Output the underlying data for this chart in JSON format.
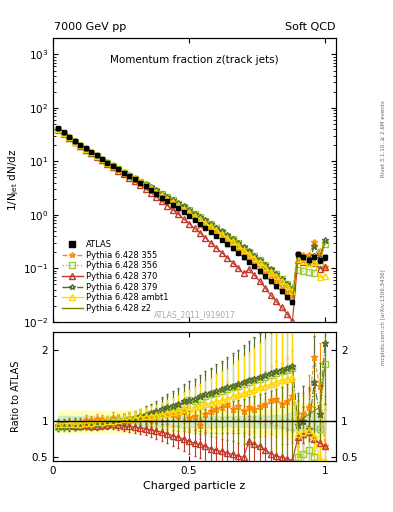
{
  "title_main": "Momentum fraction z(track jets)",
  "top_left_label": "7000 GeV pp",
  "top_right_label": "Soft QCD",
  "right_label_top": "Rivet 3.1.10, ≥ 2.6M events",
  "right_label_bottom": "mcplots.cern.ch [arXiv:1306.3436]",
  "watermark": "ATLAS_2011_I919017",
  "ylabel_main": "1/N$_{jet}$ dN/dz",
  "ylabel_ratio": "Ratio to ATLAS",
  "xlabel": "Charged particle z",
  "ylim_main_log": [
    0.01,
    2000
  ],
  "ylim_ratio": [
    0.45,
    2.25
  ],
  "xlim": [
    0.0,
    1.04
  ],
  "z_values": [
    0.02,
    0.04,
    0.06,
    0.08,
    0.1,
    0.12,
    0.14,
    0.16,
    0.18,
    0.2,
    0.22,
    0.24,
    0.26,
    0.28,
    0.3,
    0.32,
    0.34,
    0.36,
    0.38,
    0.4,
    0.42,
    0.44,
    0.46,
    0.48,
    0.5,
    0.52,
    0.54,
    0.56,
    0.58,
    0.6,
    0.62,
    0.64,
    0.66,
    0.68,
    0.7,
    0.72,
    0.74,
    0.76,
    0.78,
    0.8,
    0.82,
    0.84,
    0.86,
    0.88,
    0.9,
    0.92,
    0.94,
    0.96,
    0.98,
    1.0
  ],
  "atlas_y": [
    42,
    35,
    29,
    24.5,
    20.5,
    17.5,
    15,
    13,
    11,
    9.5,
    8.2,
    7.1,
    6.1,
    5.3,
    4.6,
    3.9,
    3.4,
    2.9,
    2.5,
    2.1,
    1.8,
    1.55,
    1.32,
    1.12,
    0.95,
    0.8,
    0.68,
    0.57,
    0.48,
    0.4,
    0.34,
    0.28,
    0.235,
    0.195,
    0.16,
    0.132,
    0.108,
    0.088,
    0.071,
    0.057,
    0.046,
    0.037,
    0.029,
    0.023,
    0.185,
    0.16,
    0.145,
    0.165,
    0.14,
    0.16
  ],
  "atlas_yerr": [
    2.0,
    1.8,
    1.5,
    1.2,
    1.0,
    0.9,
    0.75,
    0.65,
    0.55,
    0.48,
    0.41,
    0.36,
    0.31,
    0.27,
    0.23,
    0.2,
    0.17,
    0.15,
    0.13,
    0.11,
    0.09,
    0.08,
    0.07,
    0.06,
    0.05,
    0.04,
    0.035,
    0.03,
    0.025,
    0.02,
    0.017,
    0.014,
    0.012,
    0.01,
    0.008,
    0.007,
    0.006,
    0.005,
    0.004,
    0.003,
    0.003,
    0.002,
    0.002,
    0.002,
    0.015,
    0.013,
    0.012,
    0.014,
    0.012,
    0.015
  ],
  "series": [
    {
      "label": "Pythia 6.428 355",
      "color": "#ff8c00",
      "linestyle": "--",
      "marker": "*",
      "markersize": 5,
      "fillstyle": "none",
      "ratio": [
        0.93,
        0.95,
        0.96,
        0.97,
        0.97,
        1.02,
        1.01,
        1.03,
        1.02,
        1.01,
        1.05,
        1.03,
        1.02,
        1.04,
        1.03,
        1.05,
        1.06,
        1.04,
        1.08,
        1.1,
        1.12,
        1.1,
        1.09,
        1.15,
        1.05,
        1.08,
        0.95,
        1.1,
        1.15,
        1.18,
        1.2,
        1.25,
        1.18,
        1.22,
        1.15,
        1.2,
        1.18,
        1.22,
        1.25,
        1.3,
        1.32,
        1.25,
        1.28,
        1.35,
        1.0,
        1.1,
        1.2,
        1.9,
        1.5,
        0.65
      ],
      "ratio_err": [
        0.06,
        0.06,
        0.06,
        0.06,
        0.06,
        0.07,
        0.07,
        0.07,
        0.07,
        0.07,
        0.08,
        0.08,
        0.08,
        0.09,
        0.09,
        0.1,
        0.1,
        0.11,
        0.12,
        0.13,
        0.14,
        0.15,
        0.16,
        0.17,
        0.18,
        0.19,
        0.2,
        0.22,
        0.24,
        0.26,
        0.28,
        0.3,
        0.32,
        0.34,
        0.36,
        0.38,
        0.4,
        0.42,
        0.45,
        0.48,
        0.52,
        0.56,
        0.6,
        0.65,
        0.35,
        0.4,
        0.45,
        0.55,
        0.6,
        0.7
      ]
    },
    {
      "label": "Pythia 6.428 356",
      "color": "#9acd32",
      "linestyle": ":",
      "marker": "s",
      "markersize": 4,
      "fillstyle": "none",
      "ratio": [
        0.92,
        0.93,
        0.94,
        0.93,
        0.94,
        0.95,
        0.95,
        0.96,
        0.97,
        0.97,
        1.0,
        1.0,
        1.01,
        1.02,
        1.03,
        1.05,
        1.07,
        1.1,
        1.12,
        1.15,
        1.18,
        1.2,
        1.22,
        1.25,
        1.3,
        1.28,
        1.32,
        1.35,
        1.38,
        1.4,
        1.42,
        1.45,
        1.48,
        1.5,
        1.52,
        1.55,
        1.58,
        1.6,
        1.62,
        1.65,
        1.68,
        1.7,
        1.72,
        1.75,
        0.5,
        0.55,
        0.6,
        0.5,
        0.9,
        1.8
      ],
      "ratio_err": [
        0.06,
        0.06,
        0.06,
        0.06,
        0.06,
        0.07,
        0.07,
        0.07,
        0.07,
        0.07,
        0.08,
        0.08,
        0.09,
        0.09,
        0.1,
        0.11,
        0.12,
        0.13,
        0.14,
        0.16,
        0.18,
        0.2,
        0.22,
        0.24,
        0.26,
        0.28,
        0.3,
        0.32,
        0.35,
        0.38,
        0.4,
        0.42,
        0.45,
        0.48,
        0.52,
        0.55,
        0.58,
        0.62,
        0.65,
        0.7,
        0.75,
        0.8,
        0.85,
        0.9,
        0.5,
        0.55,
        0.6,
        0.65,
        0.7,
        0.8
      ]
    },
    {
      "label": "Pythia 6.428 370",
      "color": "#c0392b",
      "linestyle": "-",
      "marker": "^",
      "markersize": 4,
      "fillstyle": "none",
      "ratio": [
        0.96,
        0.95,
        0.95,
        0.94,
        0.94,
        0.95,
        0.94,
        0.94,
        0.95,
        0.95,
        0.96,
        0.95,
        0.94,
        0.93,
        0.92,
        0.91,
        0.9,
        0.88,
        0.87,
        0.85,
        0.83,
        0.8,
        0.78,
        0.75,
        0.72,
        0.7,
        0.68,
        0.65,
        0.62,
        0.6,
        0.58,
        0.56,
        0.54,
        0.52,
        0.5,
        0.72,
        0.68,
        0.65,
        0.6,
        0.55,
        0.52,
        0.5,
        0.48,
        0.45,
        0.78,
        0.82,
        0.85,
        0.75,
        0.7,
        0.65
      ],
      "ratio_err": [
        0.05,
        0.05,
        0.05,
        0.05,
        0.05,
        0.06,
        0.06,
        0.06,
        0.06,
        0.06,
        0.07,
        0.07,
        0.07,
        0.08,
        0.08,
        0.09,
        0.09,
        0.1,
        0.11,
        0.12,
        0.13,
        0.14,
        0.15,
        0.16,
        0.17,
        0.18,
        0.19,
        0.2,
        0.22,
        0.24,
        0.26,
        0.28,
        0.3,
        0.32,
        0.34,
        0.36,
        0.38,
        0.4,
        0.42,
        0.45,
        0.48,
        0.52,
        0.55,
        0.58,
        0.35,
        0.38,
        0.4,
        0.45,
        0.48,
        0.52
      ]
    },
    {
      "label": "Pythia 6.428 379",
      "color": "#556b2f",
      "linestyle": "-.",
      "marker": "*",
      "markersize": 5,
      "fillstyle": "none",
      "ratio": [
        0.93,
        0.94,
        0.93,
        0.94,
        0.95,
        0.96,
        0.96,
        0.97,
        0.98,
        0.98,
        1.0,
        1.01,
        1.02,
        1.03,
        1.05,
        1.07,
        1.09,
        1.12,
        1.15,
        1.18,
        1.2,
        1.22,
        1.25,
        1.28,
        1.3,
        1.32,
        1.35,
        1.38,
        1.4,
        1.42,
        1.45,
        1.48,
        1.5,
        1.52,
        1.55,
        1.58,
        1.6,
        1.62,
        1.65,
        1.68,
        1.7,
        1.72,
        1.75,
        1.78,
        0.95,
        1.0,
        0.9,
        1.55,
        1.1,
        2.1
      ],
      "ratio_err": [
        0.06,
        0.06,
        0.06,
        0.06,
        0.06,
        0.07,
        0.07,
        0.07,
        0.07,
        0.07,
        0.08,
        0.08,
        0.09,
        0.09,
        0.1,
        0.11,
        0.12,
        0.13,
        0.14,
        0.16,
        0.18,
        0.2,
        0.22,
        0.24,
        0.26,
        0.28,
        0.3,
        0.32,
        0.35,
        0.38,
        0.4,
        0.42,
        0.45,
        0.48,
        0.52,
        0.55,
        0.58,
        0.62,
        0.65,
        0.7,
        0.75,
        0.8,
        0.85,
        0.9,
        0.45,
        0.5,
        0.55,
        0.65,
        0.72,
        0.85
      ]
    },
    {
      "label": "Pythia 6.428 ambt1",
      "color": "#ffd700",
      "linestyle": "-",
      "marker": "^",
      "markersize": 4,
      "fillstyle": "none",
      "ratio": [
        0.96,
        0.97,
        0.97,
        0.96,
        0.97,
        0.98,
        0.98,
        0.99,
        0.99,
        1.0,
        1.01,
        1.02,
        1.03,
        1.04,
        1.05,
        1.06,
        1.07,
        1.08,
        1.09,
        1.1,
        1.12,
        1.13,
        1.15,
        1.17,
        1.18,
        1.2,
        1.22,
        1.24,
        1.26,
        1.28,
        1.3,
        1.32,
        1.35,
        1.38,
        1.4,
        1.42,
        1.45,
        1.48,
        1.5,
        1.52,
        1.55,
        1.58,
        1.6,
        1.62,
        0.82,
        0.85,
        0.88,
        0.8,
        0.48,
        0.45
      ],
      "ratio_err": [
        0.06,
        0.06,
        0.06,
        0.06,
        0.06,
        0.07,
        0.07,
        0.07,
        0.07,
        0.07,
        0.08,
        0.08,
        0.09,
        0.09,
        0.1,
        0.11,
        0.12,
        0.13,
        0.14,
        0.16,
        0.18,
        0.2,
        0.22,
        0.24,
        0.26,
        0.28,
        0.3,
        0.32,
        0.35,
        0.38,
        0.4,
        0.42,
        0.45,
        0.48,
        0.52,
        0.55,
        0.58,
        0.62,
        0.65,
        0.7,
        0.75,
        0.8,
        0.85,
        0.9,
        0.45,
        0.5,
        0.55,
        0.6,
        0.65,
        0.75
      ]
    },
    {
      "label": "Pythia 6.428 z2",
      "color": "#808000",
      "linestyle": "-",
      "marker": null,
      "markersize": 0,
      "fillstyle": "none",
      "ratio": [
        0.99,
        0.99,
        1.0,
        1.0,
        1.0,
        1.0,
        1.0,
        1.0,
        1.0,
        1.0,
        1.0,
        1.0,
        1.0,
        1.0,
        1.0,
        1.0,
        1.0,
        1.0,
        1.0,
        1.0,
        1.0,
        1.0,
        1.0,
        1.0,
        1.0,
        1.0,
        1.0,
        1.0,
        1.0,
        1.0,
        1.0,
        1.0,
        1.0,
        1.0,
        1.0,
        1.0,
        1.0,
        1.0,
        1.0,
        1.0,
        1.0,
        1.0,
        1.0,
        1.0,
        1.0,
        1.05,
        1.1,
        1.15,
        1.2,
        1.8
      ],
      "ratio_err": [
        0.05,
        0.05,
        0.05,
        0.05,
        0.05,
        0.05,
        0.05,
        0.05,
        0.05,
        0.05,
        0.05,
        0.05,
        0.06,
        0.06,
        0.06,
        0.07,
        0.07,
        0.08,
        0.09,
        0.1,
        0.11,
        0.12,
        0.13,
        0.14,
        0.15,
        0.16,
        0.17,
        0.18,
        0.2,
        0.22,
        0.24,
        0.26,
        0.28,
        0.3,
        0.32,
        0.34,
        0.36,
        0.38,
        0.4,
        0.42,
        0.45,
        0.48,
        0.52,
        0.55,
        0.3,
        0.35,
        0.38,
        0.42,
        0.48,
        0.55
      ]
    }
  ],
  "band_yellow_color": "#ffffaa",
  "band_green_color": "#c8e6c9",
  "band_alpha": 0.8,
  "atlas_color": "#000000",
  "ref_line_color": "#000000"
}
